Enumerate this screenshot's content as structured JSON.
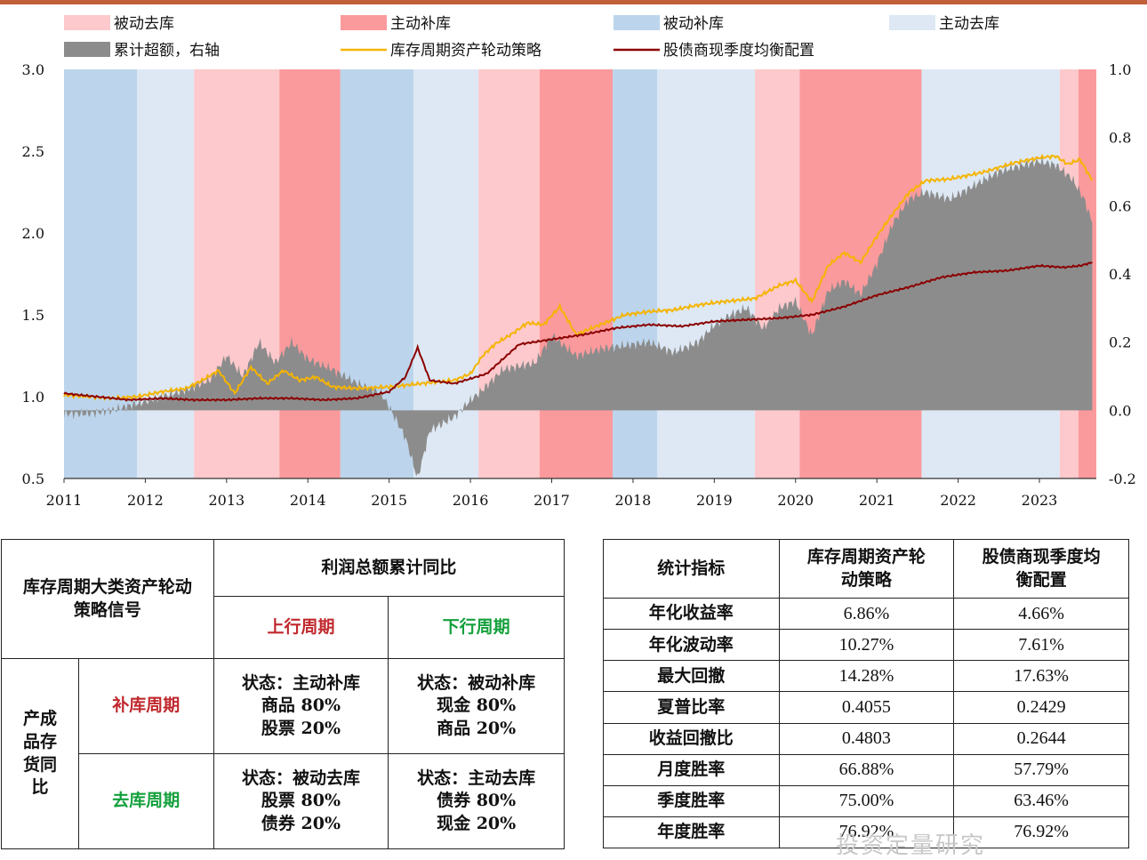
{
  "chart_data": {
    "type": "line",
    "title": "",
    "x_range": [
      2011.0,
      2023.7
    ],
    "x_ticks": [
      "2011",
      "2012",
      "2013",
      "2014",
      "2015",
      "2016",
      "2017",
      "2018",
      "2019",
      "2020",
      "2021",
      "2022",
      "2023"
    ],
    "y_left_range": [
      0.5,
      3.0
    ],
    "y_left_ticks": [
      "0.5",
      "1.0",
      "1.5",
      "2.0",
      "2.5",
      "3.0"
    ],
    "y_right_range": [
      -0.2,
      1.0
    ],
    "y_right_ticks": [
      "-0.2",
      "0.0",
      "0.2",
      "0.4",
      "0.6",
      "0.8",
      "1.0"
    ],
    "legend": [
      {
        "label": "被动去库",
        "type": "band",
        "color": "#fdc9cc"
      },
      {
        "label": "主动补库",
        "type": "band",
        "color": "#fb9a9c"
      },
      {
        "label": "被动补库",
        "type": "band",
        "color": "#bcd5ec"
      },
      {
        "label": "主动去库",
        "type": "band",
        "color": "#dde8f4"
      },
      {
        "label": "累计超额，右轴",
        "type": "area",
        "color": "#8c8c8c"
      },
      {
        "label": "库存周期资产轮动策略",
        "type": "line",
        "color": "#f5b400"
      },
      {
        "label": "股债商现季度均衡配置",
        "type": "line",
        "color": "#8b0000"
      }
    ],
    "bands": [
      {
        "start": 2011.0,
        "end": 2011.9,
        "phase": "被动补库"
      },
      {
        "start": 2011.9,
        "end": 2012.6,
        "phase": "主动去库"
      },
      {
        "start": 2012.6,
        "end": 2013.65,
        "phase": "被动去库"
      },
      {
        "start": 2013.65,
        "end": 2014.4,
        "phase": "主动补库"
      },
      {
        "start": 2014.4,
        "end": 2015.3,
        "phase": "被动补库"
      },
      {
        "start": 2015.3,
        "end": 2016.1,
        "phase": "主动去库"
      },
      {
        "start": 2016.1,
        "end": 2016.85,
        "phase": "被动去库"
      },
      {
        "start": 2016.85,
        "end": 2017.75,
        "phase": "主动补库"
      },
      {
        "start": 2017.75,
        "end": 2018.3,
        "phase": "被动补库"
      },
      {
        "start": 2018.3,
        "end": 2019.5,
        "phase": "主动去库"
      },
      {
        "start": 2019.5,
        "end": 2020.05,
        "phase": "被动去库"
      },
      {
        "start": 2020.05,
        "end": 2021.55,
        "phase": "主动补库"
      },
      {
        "start": 2021.55,
        "end": 2023.25,
        "phase": "主动去库"
      },
      {
        "start": 2023.25,
        "end": 2023.48,
        "phase": "被动去库"
      },
      {
        "start": 2023.48,
        "end": 2023.7,
        "phase": "主动补库"
      }
    ],
    "series": [
      {
        "name": "库存周期资产轮动策略",
        "axis": "left",
        "x": [
          2011.0,
          2011.3,
          2011.6,
          2011.9,
          2012.2,
          2012.5,
          2012.7,
          2012.9,
          2013.1,
          2013.3,
          2013.5,
          2013.7,
          2013.9,
          2014.1,
          2014.3,
          2014.6,
          2015.0,
          2015.4,
          2015.8,
          2016.0,
          2016.15,
          2016.3,
          2016.5,
          2016.7,
          2016.9,
          2017.1,
          2017.3,
          2017.5,
          2017.7,
          2017.9,
          2018.2,
          2018.5,
          2018.8,
          2019.1,
          2019.5,
          2019.8,
          2020.0,
          2020.2,
          2020.4,
          2020.6,
          2020.8,
          2021.0,
          2021.2,
          2021.4,
          2021.6,
          2021.9,
          2022.3,
          2022.7,
          2023.0,
          2023.2,
          2023.35,
          2023.5,
          2023.65
        ],
        "y": [
          1.01,
          1.0,
          0.99,
          1.0,
          1.03,
          1.05,
          1.1,
          1.16,
          1.02,
          1.18,
          1.08,
          1.16,
          1.1,
          1.12,
          1.06,
          1.05,
          1.06,
          1.08,
          1.1,
          1.14,
          1.25,
          1.32,
          1.38,
          1.45,
          1.44,
          1.55,
          1.38,
          1.42,
          1.46,
          1.5,
          1.52,
          1.53,
          1.56,
          1.58,
          1.6,
          1.68,
          1.71,
          1.58,
          1.8,
          1.88,
          1.82,
          1.98,
          2.12,
          2.25,
          2.32,
          2.33,
          2.37,
          2.43,
          2.46,
          2.47,
          2.42,
          2.45,
          2.32
        ]
      },
      {
        "name": "股债商现季度均衡配置",
        "axis": "left",
        "x": [
          2011.0,
          2011.4,
          2011.8,
          2012.2,
          2012.6,
          2013.0,
          2013.4,
          2013.8,
          2014.2,
          2014.6,
          2015.0,
          2015.2,
          2015.35,
          2015.5,
          2015.8,
          2016.2,
          2016.6,
          2017.0,
          2017.4,
          2017.8,
          2018.2,
          2018.6,
          2019.0,
          2019.4,
          2019.8,
          2020.2,
          2020.6,
          2021.0,
          2021.4,
          2021.8,
          2022.2,
          2022.6,
          2023.0,
          2023.3,
          2023.5,
          2023.65
        ],
        "y": [
          1.02,
          1.0,
          0.98,
          0.99,
          0.98,
          0.98,
          0.99,
          0.99,
          0.98,
          0.99,
          1.03,
          1.12,
          1.3,
          1.1,
          1.08,
          1.14,
          1.32,
          1.35,
          1.38,
          1.42,
          1.44,
          1.43,
          1.46,
          1.47,
          1.48,
          1.5,
          1.55,
          1.62,
          1.67,
          1.73,
          1.76,
          1.77,
          1.8,
          1.79,
          1.8,
          1.82
        ]
      },
      {
        "name": "累计超额，右轴",
        "axis": "right",
        "x": [
          2011.0,
          2011.3,
          2011.6,
          2011.9,
          2012.2,
          2012.5,
          2012.8,
          2013.0,
          2013.2,
          2013.4,
          2013.6,
          2013.8,
          2014.0,
          2014.3,
          2014.6,
          2014.9,
          2015.0,
          2015.2,
          2015.35,
          2015.5,
          2015.8,
          2016.0,
          2016.15,
          2016.4,
          2016.8,
          2017.0,
          2017.3,
          2017.6,
          2017.9,
          2018.2,
          2018.5,
          2018.8,
          2019.0,
          2019.2,
          2019.4,
          2019.6,
          2019.8,
          2020.0,
          2020.2,
          2020.4,
          2020.6,
          2020.8,
          2021.0,
          2021.2,
          2021.4,
          2021.6,
          2021.9,
          2022.2,
          2022.5,
          2022.8,
          2023.0,
          2023.2,
          2023.4,
          2023.55,
          2023.65
        ],
        "y": [
          -0.01,
          -0.01,
          0.0,
          0.02,
          0.04,
          0.06,
          0.09,
          0.16,
          0.1,
          0.2,
          0.14,
          0.2,
          0.15,
          0.12,
          0.08,
          0.05,
          0.01,
          -0.08,
          -0.2,
          -0.06,
          -0.02,
          0.03,
          0.06,
          0.12,
          0.14,
          0.22,
          0.16,
          0.18,
          0.19,
          0.2,
          0.17,
          0.2,
          0.25,
          0.28,
          0.3,
          0.24,
          0.3,
          0.32,
          0.22,
          0.35,
          0.38,
          0.34,
          0.43,
          0.55,
          0.62,
          0.64,
          0.62,
          0.66,
          0.7,
          0.72,
          0.73,
          0.72,
          0.68,
          0.62,
          0.55
        ]
      }
    ]
  },
  "signal_table": {
    "corner": "库存周期大类资产轮动策略信号",
    "profit_header": "利润总额累计同比",
    "up_label": "上行周期",
    "down_label": "下行周期",
    "inv_label": "产成品存货同比",
    "restock_label": "补库周期",
    "destock_label": "去库周期",
    "cells": {
      "restock_up": [
        "状态：主动补库",
        "商品 80%",
        "股票 20%"
      ],
      "restock_down": [
        "状态：被动补库",
        "现金 80%",
        "商品 20%"
      ],
      "destock_up": [
        "状态：被动去库",
        "股票 80%",
        "债券 20%"
      ],
      "destock_down": [
        "状态：主动去库",
        "债券 80%",
        "现金 20%"
      ]
    }
  },
  "stats_table": {
    "headers": [
      "统计指标",
      "库存周期资产轮动策略",
      "股债商现季度均衡配置"
    ],
    "rows": [
      [
        "年化收益率",
        "6.86%",
        "4.66%"
      ],
      [
        "年化波动率",
        "10.27%",
        "7.61%"
      ],
      [
        "最大回撤",
        "14.28%",
        "17.63%"
      ],
      [
        "夏普比率",
        "0.4055",
        "0.2429"
      ],
      [
        "收益回撤比",
        "0.4803",
        "0.2644"
      ],
      [
        "月度胜率",
        "66.88%",
        "57.79%"
      ],
      [
        "季度胜率",
        "75.00%",
        "63.46%"
      ],
      [
        "年度胜率",
        "76.92%",
        "76.92%"
      ]
    ]
  },
  "watermark": "投资定量研究"
}
